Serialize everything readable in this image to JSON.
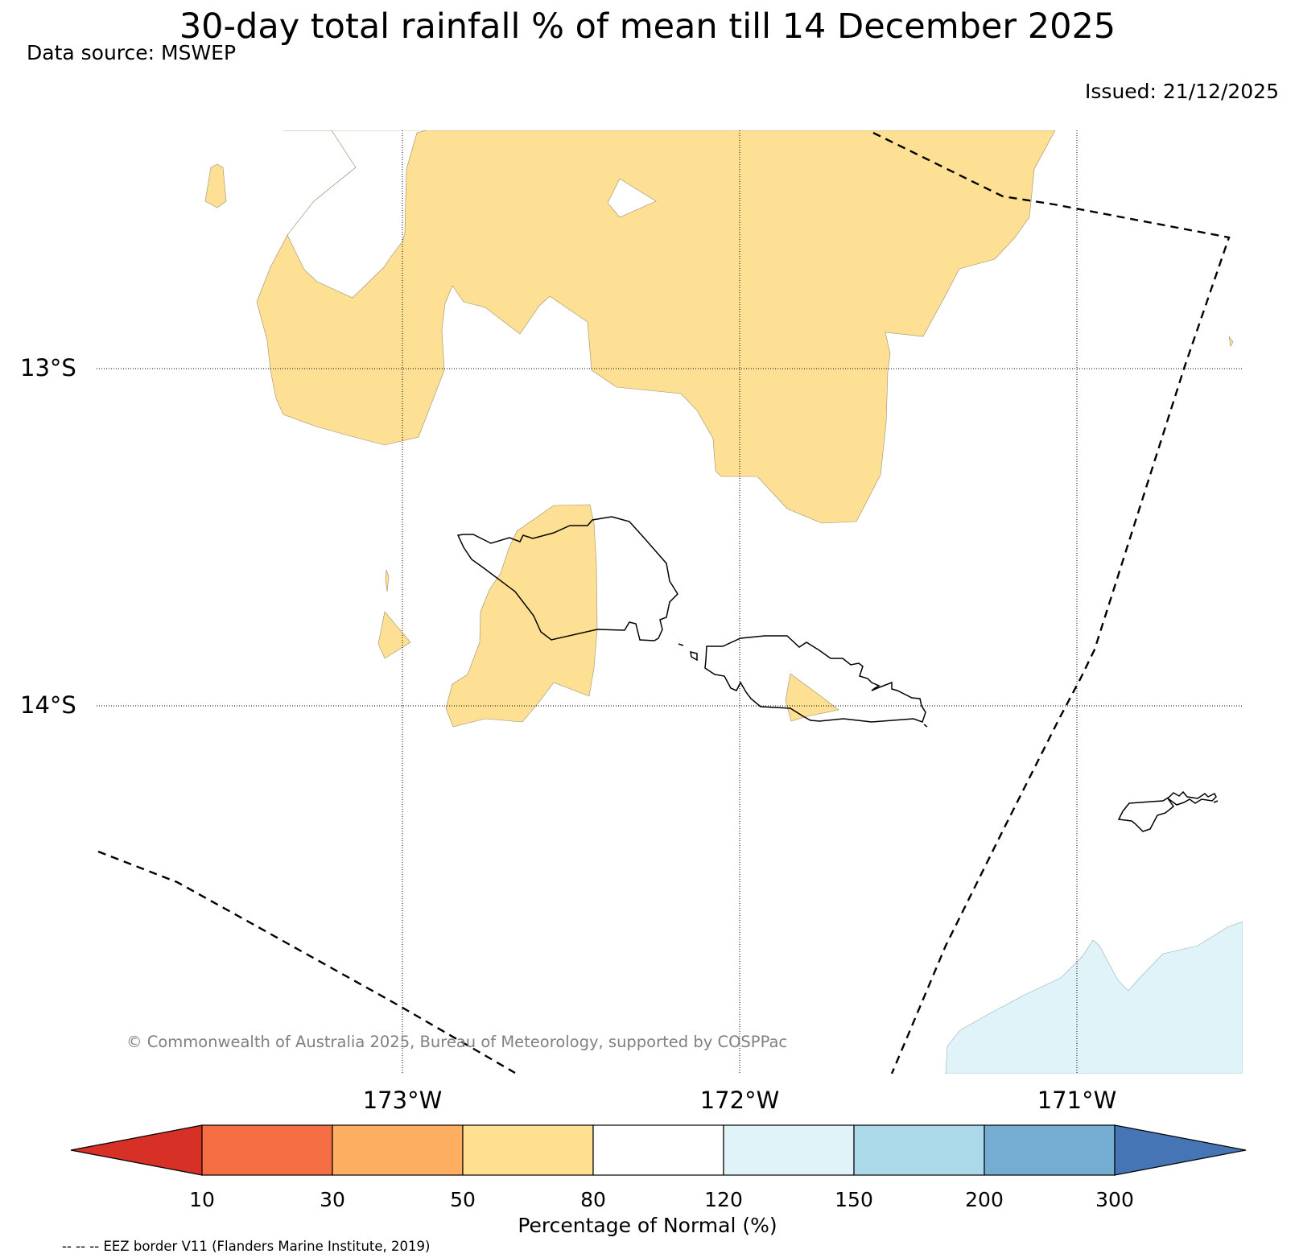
{
  "header": {
    "title": "30-day total rainfall % of mean till 14 December 2025",
    "data_source": "Data source: MSWEP",
    "issued": "Issued: 21/12/2025"
  },
  "map": {
    "lat_labels": [
      "13°S",
      "14°S"
    ],
    "lon_labels": [
      "173°W",
      "172°W",
      "171°W"
    ],
    "copyright": "© Commonwealth of Australia 2025, Bureau of Meteorology, supported by COSPPac",
    "regions": [
      {
        "category": "50-80",
        "color": "#fde094"
      },
      {
        "category": "120-150",
        "color": "#e0f3f8"
      }
    ]
  },
  "colorbar": {
    "title": "Percentage of Normal (%)",
    "ticks": [
      "10",
      "30",
      "50",
      "80",
      "120",
      "150",
      "200",
      "300"
    ],
    "colors": {
      "below_10": "#d73027",
      "10-30": "#f46d43",
      "30-50": "#fdae61",
      "50-80": "#fee090",
      "80-120": "#ffffff",
      "120-150": "#e0f3f8",
      "150-200": "#abd9e9",
      "200-300": "#74add1",
      "above_300": "#4575b4"
    }
  },
  "footer": {
    "eez_note": "-- -- -- EEZ border V11 (Flanders Marine Institute, 2019)"
  }
}
